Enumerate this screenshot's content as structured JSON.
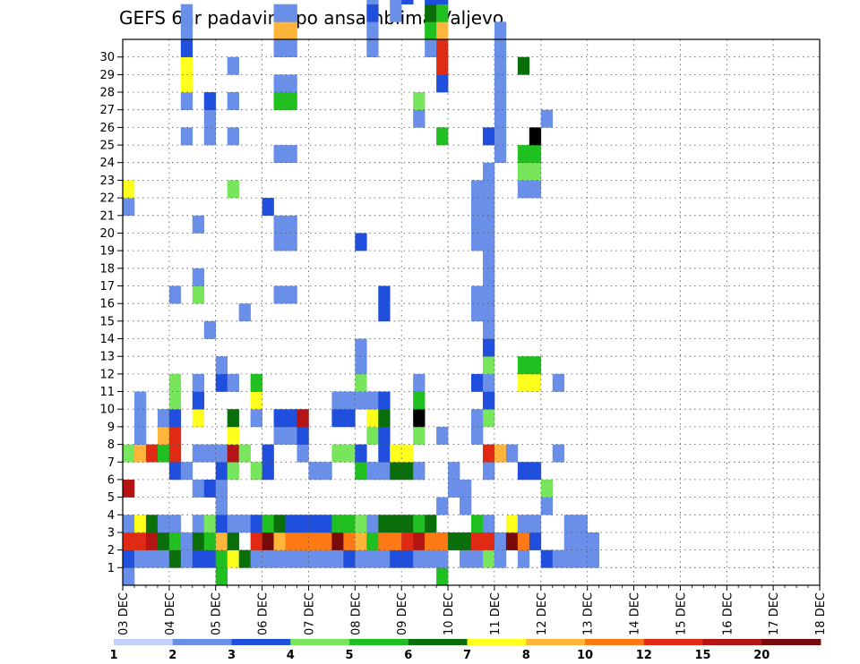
{
  "chart_data": {
    "type": "heatmap",
    "title": "GEFS 6hr padavine po ansamblima Valjevo",
    "xlabel": "",
    "ylabel": "",
    "x_ticks": [
      "03 DEC",
      "04 DEC",
      "05 DEC",
      "06 DEC",
      "07 DEC",
      "08 DEC",
      "09 DEC",
      "10 DEC",
      "11 DEC",
      "12 DEC",
      "13 DEC",
      "14 DEC",
      "15 DEC",
      "16 DEC",
      "17 DEC",
      "18 DEC"
    ],
    "y_ticks": [
      1,
      2,
      3,
      4,
      5,
      6,
      7,
      8,
      9,
      10,
      11,
      12,
      13,
      14,
      15,
      16,
      17,
      18,
      19,
      20,
      21,
      22,
      23,
      24,
      25,
      26,
      27,
      28,
      29,
      30
    ],
    "colorbar": {
      "labels": [
        "1",
        "2",
        "3",
        "4",
        "5",
        "6",
        "7",
        "8",
        "10",
        "12",
        "15",
        "20"
      ],
      "colors": [
        "#c0d0ff",
        "#6a8fe8",
        "#1f4fdc",
        "#78e65c",
        "#1fc01f",
        "#0a6e0a",
        "#ffff1e",
        "#ffb43a",
        "#ff7a14",
        "#e02a14",
        "#b41414",
        "#780a0a"
      ]
    },
    "grid": true,
    "cells": [
      [
        0,
        0,
        1
      ],
      [
        0,
        1,
        2
      ],
      [
        0,
        2,
        9
      ],
      [
        0,
        3,
        1
      ],
      [
        0,
        5,
        10
      ],
      [
        0,
        7,
        3
      ],
      [
        0,
        21,
        1
      ],
      [
        0,
        22,
        6
      ],
      [
        1,
        1,
        1
      ],
      [
        1,
        2,
        9
      ],
      [
        1,
        3,
        6
      ],
      [
        1,
        7,
        7
      ],
      [
        1,
        8,
        1
      ],
      [
        1,
        9,
        1
      ],
      [
        1,
        10,
        1
      ],
      [
        2,
        1,
        1
      ],
      [
        2,
        2,
        10
      ],
      [
        2,
        3,
        5
      ],
      [
        2,
        7,
        9
      ],
      [
        3,
        1,
        1
      ],
      [
        3,
        2,
        5
      ],
      [
        3,
        3,
        1
      ],
      [
        3,
        7,
        4
      ],
      [
        3,
        8,
        7
      ],
      [
        3,
        9,
        1
      ],
      [
        4,
        1,
        5
      ],
      [
        4,
        2,
        4
      ],
      [
        4,
        3,
        1
      ],
      [
        4,
        6,
        2
      ],
      [
        4,
        7,
        9
      ],
      [
        4,
        8,
        9
      ],
      [
        4,
        9,
        2
      ],
      [
        4,
        10,
        3
      ],
      [
        4,
        11,
        3
      ],
      [
        4,
        16,
        1
      ],
      [
        5,
        1,
        1
      ],
      [
        5,
        2,
        1
      ],
      [
        5,
        6,
        1
      ],
      [
        5,
        25,
        1
      ],
      [
        5,
        27,
        1
      ],
      [
        5,
        28,
        6
      ],
      [
        5,
        29,
        6
      ],
      [
        5,
        30,
        2
      ],
      [
        5,
        31,
        1
      ],
      [
        5,
        32,
        1
      ],
      [
        6,
        1,
        2
      ],
      [
        6,
        2,
        5
      ],
      [
        6,
        3,
        1
      ],
      [
        6,
        5,
        1
      ],
      [
        6,
        7,
        1
      ],
      [
        6,
        9,
        6
      ],
      [
        6,
        10,
        2
      ],
      [
        6,
        11,
        1
      ],
      [
        6,
        16,
        3
      ],
      [
        6,
        17,
        1
      ],
      [
        6,
        20,
        1
      ],
      [
        7,
        1,
        2
      ],
      [
        7,
        2,
        4
      ],
      [
        7,
        3,
        3
      ],
      [
        7,
        5,
        2
      ],
      [
        7,
        7,
        1
      ],
      [
        7,
        14,
        1
      ],
      [
        7,
        25,
        1
      ],
      [
        7,
        26,
        1
      ],
      [
        7,
        27,
        2
      ],
      [
        8,
        0,
        4
      ],
      [
        8,
        1,
        4
      ],
      [
        8,
        2,
        7
      ],
      [
        8,
        3,
        2
      ],
      [
        8,
        4,
        1
      ],
      [
        8,
        5,
        1
      ],
      [
        8,
        6,
        2
      ],
      [
        8,
        7,
        1
      ],
      [
        8,
        11,
        2
      ],
      [
        8,
        12,
        1
      ],
      [
        9,
        1,
        6
      ],
      [
        9,
        2,
        5
      ],
      [
        9,
        3,
        1
      ],
      [
        9,
        6,
        3
      ],
      [
        9,
        7,
        10
      ],
      [
        9,
        8,
        6
      ],
      [
        9,
        9,
        5
      ],
      [
        9,
        11,
        1
      ],
      [
        9,
        22,
        3
      ],
      [
        9,
        25,
        1
      ],
      [
        9,
        27,
        1
      ],
      [
        9,
        29,
        1
      ],
      [
        10,
        1,
        5
      ],
      [
        10,
        3,
        1
      ],
      [
        10,
        7,
        3
      ],
      [
        10,
        15,
        1
      ],
      [
        11,
        1,
        1
      ],
      [
        11,
        2,
        9
      ],
      [
        11,
        3,
        2
      ],
      [
        11,
        6,
        3
      ],
      [
        11,
        9,
        1
      ],
      [
        11,
        10,
        6
      ],
      [
        11,
        11,
        4
      ],
      [
        12,
        1,
        1
      ],
      [
        12,
        2,
        11
      ],
      [
        12,
        3,
        4
      ],
      [
        12,
        6,
        2
      ],
      [
        12,
        7,
        2
      ],
      [
        12,
        21,
        2
      ],
      [
        13,
        1,
        1
      ],
      [
        13,
        2,
        7
      ],
      [
        13,
        3,
        5
      ],
      [
        13,
        8,
        1
      ],
      [
        13,
        9,
        2
      ],
      [
        13,
        16,
        1
      ],
      [
        13,
        19,
        1
      ],
      [
        13,
        20,
        1
      ],
      [
        13,
        24,
        1
      ],
      [
        13,
        27,
        4
      ],
      [
        13,
        28,
        1
      ],
      [
        13,
        30,
        1
      ],
      [
        13,
        31,
        7
      ],
      [
        13,
        32,
        1
      ],
      [
        13,
        36,
        1
      ],
      [
        13,
        37,
        4
      ],
      [
        13,
        38,
        3
      ],
      [
        14,
        1,
        1
      ],
      [
        14,
        2,
        8
      ],
      [
        14,
        3,
        2
      ],
      [
        14,
        8,
        1
      ],
      [
        14,
        9,
        2
      ],
      [
        14,
        16,
        1
      ],
      [
        14,
        19,
        1
      ],
      [
        14,
        20,
        1
      ],
      [
        14,
        24,
        1
      ],
      [
        14,
        27,
        4
      ],
      [
        14,
        28,
        1
      ],
      [
        14,
        30,
        1
      ],
      [
        14,
        31,
        7
      ],
      [
        14,
        32,
        1
      ],
      [
        14,
        36,
        1
      ],
      [
        14,
        37,
        4
      ],
      [
        14,
        38,
        3
      ],
      [
        14,
        39,
        1
      ],
      [
        14,
        40,
        1
      ],
      [
        15,
        1,
        1
      ],
      [
        15,
        2,
        8
      ],
      [
        15,
        3,
        2
      ],
      [
        15,
        7,
        1
      ],
      [
        15,
        8,
        2
      ],
      [
        15,
        9,
        10
      ],
      [
        15,
        39,
        1
      ],
      [
        15,
        40,
        1
      ],
      [
        16,
        1,
        1
      ],
      [
        16,
        2,
        8
      ],
      [
        16,
        3,
        2
      ],
      [
        16,
        6,
        1
      ],
      [
        17,
        1,
        1
      ],
      [
        17,
        2,
        8
      ],
      [
        17,
        3,
        2
      ],
      [
        17,
        6,
        1
      ],
      [
        18,
        1,
        1
      ],
      [
        18,
        2,
        11
      ],
      [
        18,
        3,
        4
      ],
      [
        18,
        7,
        3
      ],
      [
        18,
        9,
        2
      ],
      [
        18,
        10,
        1
      ],
      [
        18,
        35,
        2
      ],
      [
        18,
        36,
        4
      ],
      [
        19,
        1,
        2
      ],
      [
        19,
        2,
        8
      ],
      [
        19,
        3,
        4
      ],
      [
        19,
        7,
        3
      ],
      [
        19,
        9,
        2
      ],
      [
        19,
        10,
        1
      ],
      [
        19,
        35,
        2
      ],
      [
        19,
        36,
        4
      ],
      [
        20,
        1,
        1
      ],
      [
        20,
        2,
        7
      ],
      [
        20,
        3,
        3
      ],
      [
        20,
        6,
        4
      ],
      [
        20,
        7,
        2
      ],
      [
        20,
        10,
        1
      ],
      [
        20,
        11,
        3
      ],
      [
        20,
        12,
        1
      ],
      [
        20,
        13,
        1
      ],
      [
        20,
        19,
        2
      ],
      [
        21,
        1,
        1
      ],
      [
        21,
        2,
        4
      ],
      [
        21,
        3,
        1
      ],
      [
        21,
        6,
        1
      ],
      [
        21,
        8,
        3
      ],
      [
        21,
        9,
        6
      ],
      [
        21,
        10,
        1
      ],
      [
        21,
        30,
        1
      ],
      [
        21,
        31,
        1
      ],
      [
        21,
        32,
        2
      ],
      [
        21,
        33,
        1
      ],
      [
        21,
        37,
        1
      ],
      [
        22,
        1,
        1
      ],
      [
        22,
        2,
        8
      ],
      [
        22,
        3,
        5
      ],
      [
        22,
        6,
        1
      ],
      [
        22,
        7,
        2
      ],
      [
        22,
        8,
        2
      ],
      [
        22,
        9,
        5
      ],
      [
        22,
        10,
        2
      ],
      [
        22,
        15,
        2
      ],
      [
        22,
        16,
        2
      ],
      [
        22,
        34,
        1
      ],
      [
        22,
        36,
        2
      ],
      [
        22,
        37,
        3
      ],
      [
        22,
        38,
        6
      ],
      [
        22,
        39,
        2
      ],
      [
        22,
        40,
        1
      ],
      [
        23,
        1,
        2
      ],
      [
        23,
        2,
        8
      ],
      [
        23,
        3,
        5
      ],
      [
        23,
        6,
        5
      ],
      [
        23,
        7,
        6
      ],
      [
        23,
        32,
        1
      ],
      [
        23,
        33,
        1
      ],
      [
        23,
        36,
        1
      ],
      [
        23,
        37,
        1
      ],
      [
        23,
        38,
        1
      ],
      [
        23,
        39,
        1
      ],
      [
        23,
        40,
        1
      ],
      [
        23,
        41,
        1
      ],
      [
        24,
        1,
        2
      ],
      [
        24,
        2,
        9
      ],
      [
        24,
        3,
        5
      ],
      [
        24,
        6,
        5
      ],
      [
        24,
        7,
        6
      ],
      [
        24,
        33,
        2
      ],
      [
        25,
        1,
        1
      ],
      [
        25,
        2,
        10
      ],
      [
        25,
        3,
        4
      ],
      [
        25,
        6,
        1
      ],
      [
        25,
        8,
        3
      ],
      [
        25,
        9,
        12
      ],
      [
        25,
        10,
        4
      ],
      [
        25,
        11,
        1
      ],
      [
        25,
        26,
        1
      ],
      [
        25,
        27,
        3
      ],
      [
        26,
        1,
        1
      ],
      [
        26,
        2,
        8
      ],
      [
        26,
        3,
        5
      ],
      [
        26,
        30,
        1
      ],
      [
        26,
        31,
        4
      ],
      [
        26,
        32,
        5
      ],
      [
        26,
        33,
        2
      ],
      [
        27,
        0,
        4
      ],
      [
        27,
        1,
        1
      ],
      [
        27,
        2,
        8
      ],
      [
        27,
        4,
        1
      ],
      [
        27,
        8,
        1
      ],
      [
        27,
        25,
        4
      ],
      [
        27,
        28,
        2
      ],
      [
        27,
        29,
        9
      ],
      [
        27,
        30,
        9
      ],
      [
        27,
        31,
        7
      ],
      [
        27,
        32,
        4
      ],
      [
        27,
        33,
        2
      ],
      [
        28,
        2,
        5
      ],
      [
        28,
        5,
        1
      ],
      [
        28,
        6,
        1
      ],
      [
        29,
        1,
        1
      ],
      [
        29,
        2,
        5
      ],
      [
        29,
        4,
        1
      ],
      [
        29,
        5,
        1
      ],
      [
        30,
        1,
        1
      ],
      [
        30,
        2,
        9
      ],
      [
        30,
        3,
        4
      ],
      [
        30,
        8,
        1
      ],
      [
        30,
        9,
        1
      ],
      [
        30,
        11,
        2
      ],
      [
        30,
        15,
        1
      ],
      [
        30,
        16,
        1
      ],
      [
        30,
        19,
        1
      ],
      [
        30,
        20,
        1
      ],
      [
        30,
        21,
        1
      ],
      [
        30,
        22,
        1
      ],
      [
        31,
        1,
        3
      ],
      [
        31,
        2,
        9
      ],
      [
        31,
        3,
        1
      ],
      [
        31,
        6,
        1
      ],
      [
        31,
        7,
        9
      ],
      [
        31,
        9,
        3
      ],
      [
        31,
        10,
        2
      ],
      [
        31,
        11,
        1
      ],
      [
        31,
        12,
        3
      ],
      [
        31,
        13,
        2
      ],
      [
        31,
        14,
        1
      ],
      [
        31,
        15,
        1
      ],
      [
        31,
        16,
        1
      ],
      [
        31,
        17,
        1
      ],
      [
        31,
        18,
        1
      ],
      [
        31,
        19,
        1
      ],
      [
        31,
        20,
        1
      ],
      [
        31,
        21,
        1
      ],
      [
        31,
        22,
        1
      ],
      [
        31,
        23,
        1
      ],
      [
        31,
        25,
        2
      ],
      [
        32,
        1,
        1
      ],
      [
        32,
        2,
        1
      ],
      [
        32,
        7,
        7
      ],
      [
        32,
        24,
        1
      ],
      [
        32,
        25,
        1
      ],
      [
        32,
        26,
        1
      ],
      [
        32,
        27,
        1
      ],
      [
        32,
        28,
        1
      ],
      [
        32,
        29,
        1
      ],
      [
        32,
        30,
        1
      ],
      [
        32,
        31,
        1
      ],
      [
        32,
        35,
        1
      ],
      [
        33,
        2,
        11
      ],
      [
        33,
        3,
        6
      ],
      [
        33,
        7,
        1
      ],
      [
        34,
        1,
        1
      ],
      [
        34,
        2,
        8
      ],
      [
        34,
        3,
        1
      ],
      [
        34,
        6,
        2
      ],
      [
        34,
        11,
        6
      ],
      [
        34,
        12,
        4
      ],
      [
        34,
        22,
        1
      ],
      [
        34,
        23,
        3
      ],
      [
        34,
        24,
        4
      ],
      [
        34,
        29,
        5
      ],
      [
        35,
        2,
        2
      ],
      [
        35,
        3,
        1
      ],
      [
        35,
        6,
        2
      ],
      [
        35,
        11,
        6
      ],
      [
        35,
        12,
        4
      ],
      [
        35,
        22,
        1
      ],
      [
        35,
        23,
        3
      ],
      [
        35,
        24,
        4
      ],
      [
        35,
        25,
        12
      ],
      [
        36,
        1,
        2
      ],
      [
        36,
        4,
        1
      ],
      [
        36,
        5,
        3
      ],
      [
        36,
        26,
        1
      ],
      [
        37,
        1,
        1
      ],
      [
        37,
        7,
        1
      ],
      [
        37,
        11,
        1
      ],
      [
        38,
        1,
        1
      ],
      [
        38,
        2,
        1
      ],
      [
        38,
        3,
        1
      ],
      [
        39,
        1,
        1
      ],
      [
        39,
        2,
        1
      ],
      [
        39,
        3,
        1
      ],
      [
        40,
        1,
        1
      ],
      [
        40,
        2,
        1
      ]
    ]
  }
}
